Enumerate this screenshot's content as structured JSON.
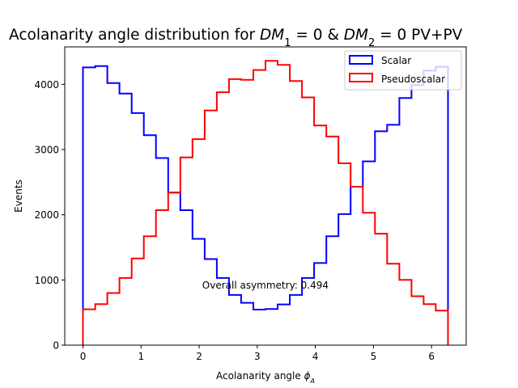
{
  "chart_data": {
    "type": "step",
    "title_parts": [
      {
        "t": "Acolanarity angle distribution for "
      },
      {
        "t": "DM",
        "style": "italic"
      },
      {
        "t": "1",
        "style": "sub"
      },
      {
        "t": " = 0 & "
      },
      {
        "t": "DM",
        "style": "italic"
      },
      {
        "t": "2",
        "style": "sub"
      },
      {
        "t": " = 0 PV+PV"
      }
    ],
    "xlabel_parts": [
      {
        "t": "Acolanarity angle "
      },
      {
        "t": "ϕ",
        "style": "italic"
      },
      {
        "t": "A",
        "style": "sub-italic"
      }
    ],
    "ylabel": "Events",
    "xlim": [
      -0.314,
      6.597
    ],
    "ylim": [
      0,
      4575
    ],
    "xticks": [
      0,
      1,
      2,
      3,
      4,
      5,
      6
    ],
    "yticks": [
      0,
      1000,
      2000,
      3000,
      4000
    ],
    "bin_edges": [
      0,
      0.2094,
      0.4189,
      0.6283,
      0.8378,
      1.0472,
      1.2566,
      1.4661,
      1.6755,
      1.885,
      2.0944,
      2.3038,
      2.5133,
      2.7227,
      2.9322,
      3.1416,
      3.351,
      3.5605,
      3.7699,
      3.9794,
      4.1888,
      4.3982,
      4.6077,
      4.8171,
      5.0265,
      5.236,
      5.4454,
      5.6549,
      5.8643,
      6.0737,
      6.2832
    ],
    "series": [
      {
        "name": "Scalar",
        "color": "#0000ff",
        "values": [
          4260,
          4280,
          4020,
          3860,
          3560,
          3220,
          2870,
          2340,
          2070,
          1630,
          1320,
          1030,
          770,
          650,
          545,
          555,
          625,
          770,
          1030,
          1260,
          1670,
          2010,
          2430,
          2820,
          3280,
          3380,
          3790,
          3990,
          4210,
          4270
        ]
      },
      {
        "name": "Pseudoscalar",
        "color": "#ff0000",
        "values": [
          550,
          630,
          800,
          1030,
          1330,
          1670,
          2070,
          2340,
          2880,
          3160,
          3600,
          3880,
          4080,
          4070,
          4220,
          4360,
          4300,
          4050,
          3800,
          3370,
          3200,
          2790,
          2430,
          2030,
          1710,
          1250,
          1000,
          750,
          630,
          530
        ]
      }
    ],
    "annotation": {
      "text": "Overall asymmetry: 0.494",
      "x": 3.14,
      "y": 920
    },
    "legend_location": "upper right",
    "grid": false
  }
}
